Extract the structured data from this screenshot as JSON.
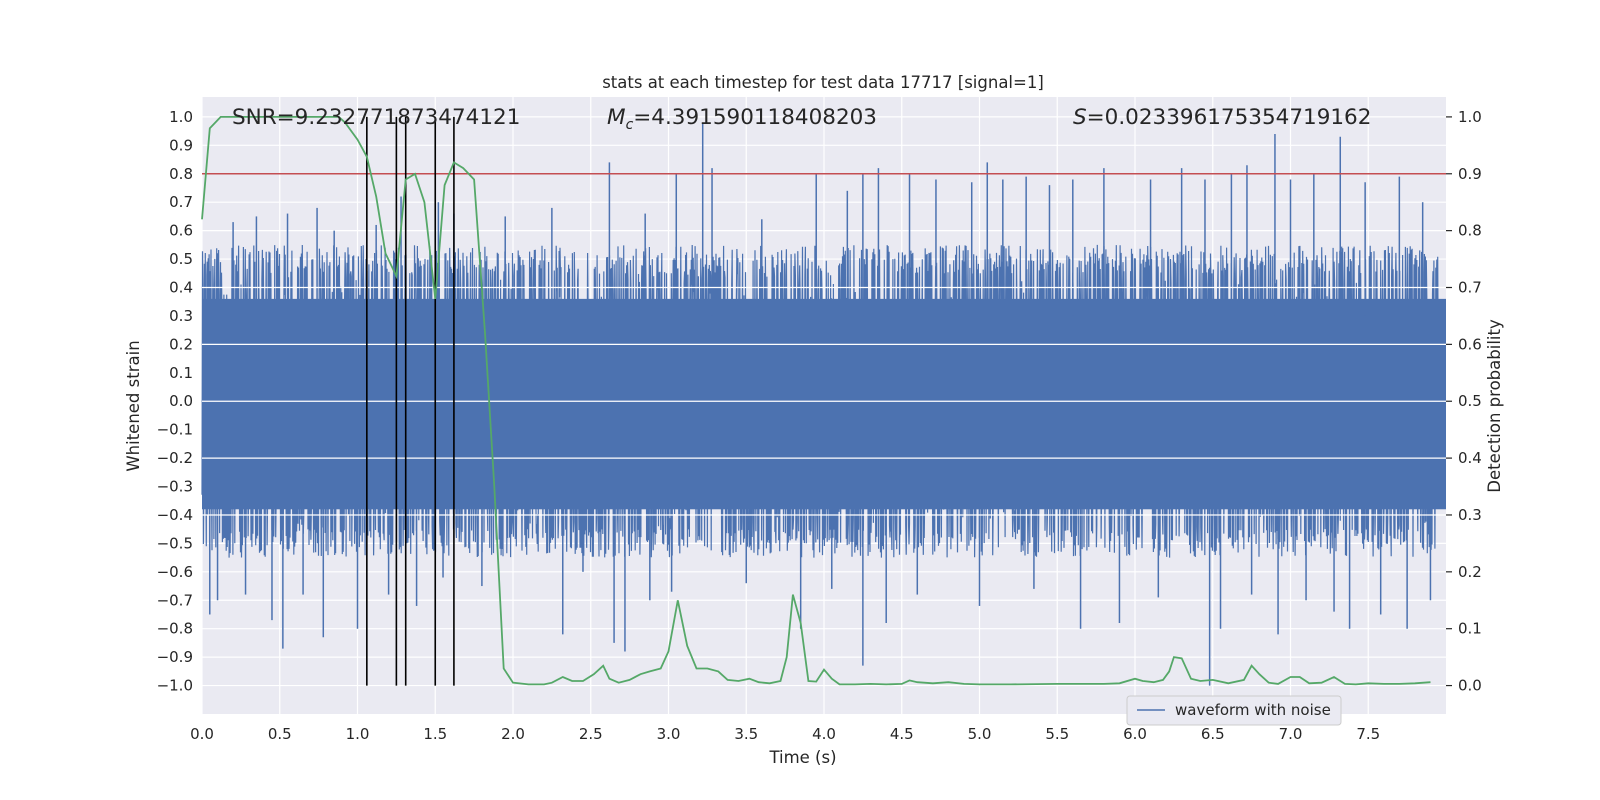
{
  "chart_data": {
    "type": "line",
    "title": "stats at each timestep for test data 17717 [signal=1]",
    "xlabel": "Time (s)",
    "ylabel_left": "Whitened strain",
    "ylabel_right": "Detection probability",
    "xlim": [
      0.0,
      8.0
    ],
    "ylim_left": [
      -1.1,
      1.07
    ],
    "ylim_right": [
      -0.05,
      1.035
    ],
    "x_ticks": [
      "0.0",
      "0.5",
      "1.0",
      "1.5",
      "2.0",
      "2.5",
      "3.0",
      "3.5",
      "4.0",
      "4.5",
      "5.0",
      "5.5",
      "6.0",
      "6.5",
      "7.0",
      "7.5"
    ],
    "x_tick_values": [
      0.0,
      0.5,
      1.0,
      1.5,
      2.0,
      2.5,
      3.0,
      3.5,
      4.0,
      4.5,
      5.0,
      5.5,
      6.0,
      6.5,
      7.0,
      7.5
    ],
    "y_left_ticks": [
      "1.0",
      "0.9",
      "0.8",
      "0.7",
      "0.6",
      "0.5",
      "0.4",
      "0.3",
      "0.2",
      "0.1",
      "0.0",
      "−0.1",
      "−0.2",
      "−0.3",
      "−0.4",
      "−0.5",
      "−0.6",
      "−0.7",
      "−0.8",
      "−0.9",
      "−1.0"
    ],
    "y_left_tick_values": [
      1.0,
      0.9,
      0.8,
      0.7,
      0.6,
      0.5,
      0.4,
      0.3,
      0.2,
      0.1,
      0.0,
      -0.1,
      -0.2,
      -0.3,
      -0.4,
      -0.5,
      -0.6,
      -0.7,
      -0.8,
      -0.9,
      -1.0
    ],
    "y_right_ticks": [
      "1.0",
      "0.9",
      "0.8",
      "0.7",
      "0.6",
      "0.5",
      "0.4",
      "0.3",
      "0.2",
      "0.1",
      "0.0"
    ],
    "y_right_tick_values": [
      1.0,
      0.9,
      0.8,
      0.7,
      0.6,
      0.5,
      0.4,
      0.3,
      0.2,
      0.1,
      0.0
    ],
    "annotations": {
      "snr": "SNR=9.232771873474121",
      "mc_symbol": "M",
      "mc_sub": "c",
      "mc_value": "=4.391590118408203",
      "s_symbol": "S",
      "s_value": "=0.023396175354719162"
    },
    "threshold": {
      "value": 0.9,
      "axis": "right",
      "color": "#c44e52"
    },
    "vertical_markers": [
      1.06,
      1.25,
      1.31,
      1.5,
      1.62
    ],
    "waveform": {
      "name": "waveform with noise",
      "color": "#4c72b0",
      "dense_band": [
        -0.45,
        0.45
      ],
      "positive_spikes": [
        [
          0.2,
          0.63
        ],
        [
          0.35,
          0.65
        ],
        [
          0.55,
          0.66
        ],
        [
          0.74,
          0.68
        ],
        [
          0.85,
          0.6
        ],
        [
          1.12,
          0.62
        ],
        [
          1.28,
          0.72
        ],
        [
          1.52,
          0.7
        ],
        [
          1.62,
          0.66
        ],
        [
          1.95,
          0.65
        ],
        [
          2.25,
          0.68
        ],
        [
          2.62,
          0.84
        ],
        [
          2.85,
          0.66
        ],
        [
          3.05,
          0.8
        ],
        [
          3.22,
          0.98
        ],
        [
          3.28,
          0.82
        ],
        [
          3.6,
          0.64
        ],
        [
          3.95,
          0.8
        ],
        [
          4.15,
          0.74
        ],
        [
          4.25,
          0.8
        ],
        [
          4.35,
          0.82
        ],
        [
          4.55,
          0.8
        ],
        [
          4.72,
          0.78
        ],
        [
          4.95,
          0.77
        ],
        [
          5.05,
          0.84
        ],
        [
          5.15,
          0.78
        ],
        [
          5.3,
          0.79
        ],
        [
          5.45,
          0.76
        ],
        [
          5.6,
          0.78
        ],
        [
          5.8,
          0.82
        ],
        [
          6.1,
          0.78
        ],
        [
          6.3,
          0.82
        ],
        [
          6.45,
          0.78
        ],
        [
          6.62,
          0.8
        ],
        [
          6.72,
          0.83
        ],
        [
          6.9,
          0.94
        ],
        [
          7.0,
          0.78
        ],
        [
          7.15,
          0.8
        ],
        [
          7.32,
          0.93
        ],
        [
          7.48,
          0.77
        ],
        [
          7.7,
          0.79
        ],
        [
          7.85,
          0.7
        ]
      ],
      "negative_spikes": [
        [
          0.05,
          -0.75
        ],
        [
          0.1,
          -0.7
        ],
        [
          0.28,
          -0.68
        ],
        [
          0.45,
          -0.77
        ],
        [
          0.52,
          -0.87
        ],
        [
          0.65,
          -0.68
        ],
        [
          0.78,
          -0.83
        ],
        [
          1.0,
          -0.8
        ],
        [
          1.2,
          -0.68
        ],
        [
          1.38,
          -0.72
        ],
        [
          1.55,
          -0.62
        ],
        [
          1.8,
          -0.65
        ],
        [
          2.32,
          -0.82
        ],
        [
          2.45,
          -0.6
        ],
        [
          2.65,
          -0.85
        ],
        [
          2.72,
          -0.88
        ],
        [
          2.88,
          -0.7
        ],
        [
          3.02,
          -0.67
        ],
        [
          3.5,
          -0.64
        ],
        [
          3.85,
          -0.8
        ],
        [
          4.05,
          -0.66
        ],
        [
          4.25,
          -0.93
        ],
        [
          4.4,
          -0.78
        ],
        [
          4.6,
          -0.68
        ],
        [
          5.0,
          -0.72
        ],
        [
          5.35,
          -0.66
        ],
        [
          5.65,
          -0.8
        ],
        [
          5.9,
          -0.78
        ],
        [
          6.15,
          -0.69
        ],
        [
          6.48,
          -1.0
        ],
        [
          6.55,
          -0.8
        ],
        [
          6.75,
          -0.68
        ],
        [
          6.92,
          -0.82
        ],
        [
          7.1,
          -0.7
        ],
        [
          7.28,
          -0.74
        ],
        [
          7.38,
          -0.8
        ],
        [
          7.58,
          -0.75
        ],
        [
          7.75,
          -0.8
        ],
        [
          7.9,
          -0.7
        ]
      ]
    },
    "detection_probability": {
      "color": "#55a868",
      "x": [
        0.0,
        0.05,
        0.12,
        0.3,
        0.5,
        0.7,
        0.88,
        0.92,
        1.0,
        1.06,
        1.12,
        1.18,
        1.25,
        1.31,
        1.37,
        1.43,
        1.5,
        1.56,
        1.62,
        1.68,
        1.75,
        1.82,
        1.88,
        1.94,
        2.0,
        2.1,
        2.2,
        2.25,
        2.32,
        2.38,
        2.45,
        2.52,
        2.58,
        2.62,
        2.68,
        2.75,
        2.82,
        2.88,
        2.95,
        3.0,
        3.06,
        3.12,
        3.18,
        3.25,
        3.32,
        3.38,
        3.45,
        3.52,
        3.58,
        3.65,
        3.72,
        3.76,
        3.8,
        3.85,
        3.9,
        3.95,
        4.0,
        4.05,
        4.1,
        4.15,
        4.2,
        4.3,
        4.4,
        4.5,
        4.55,
        4.6,
        4.7,
        4.8,
        4.9,
        5.0,
        5.2,
        5.5,
        5.8,
        5.9,
        6.0,
        6.05,
        6.12,
        6.18,
        6.22,
        6.25,
        6.3,
        6.36,
        6.42,
        6.5,
        6.6,
        6.7,
        6.75,
        6.8,
        6.86,
        6.92,
        7.0,
        7.06,
        7.12,
        7.2,
        7.28,
        7.35,
        7.42,
        7.5,
        7.6,
        7.7,
        7.8,
        7.9
      ],
      "y": [
        0.82,
        0.98,
        1.0,
        1.0,
        1.0,
        1.0,
        1.0,
        0.99,
        0.96,
        0.93,
        0.86,
        0.76,
        0.72,
        0.89,
        0.9,
        0.85,
        0.68,
        0.88,
        0.92,
        0.91,
        0.89,
        0.62,
        0.35,
        0.03,
        0.005,
        0.002,
        0.002,
        0.005,
        0.015,
        0.008,
        0.008,
        0.02,
        0.035,
        0.012,
        0.005,
        0.01,
        0.02,
        0.025,
        0.03,
        0.06,
        0.15,
        0.07,
        0.03,
        0.03,
        0.025,
        0.01,
        0.008,
        0.012,
        0.006,
        0.004,
        0.008,
        0.05,
        0.16,
        0.11,
        0.008,
        0.007,
        0.028,
        0.012,
        0.002,
        0.002,
        0.002,
        0.003,
        0.002,
        0.003,
        0.009,
        0.006,
        0.004,
        0.006,
        0.003,
        0.002,
        0.002,
        0.003,
        0.003,
        0.004,
        0.012,
        0.008,
        0.006,
        0.01,
        0.025,
        0.05,
        0.048,
        0.012,
        0.008,
        0.01,
        0.004,
        0.01,
        0.035,
        0.02,
        0.005,
        0.003,
        0.015,
        0.015,
        0.004,
        0.005,
        0.015,
        0.003,
        0.002,
        0.004,
        0.003,
        0.003,
        0.004,
        0.006
      ]
    },
    "legend": {
      "label": "waveform with noise",
      "loc": "lower right"
    },
    "grid": true
  }
}
